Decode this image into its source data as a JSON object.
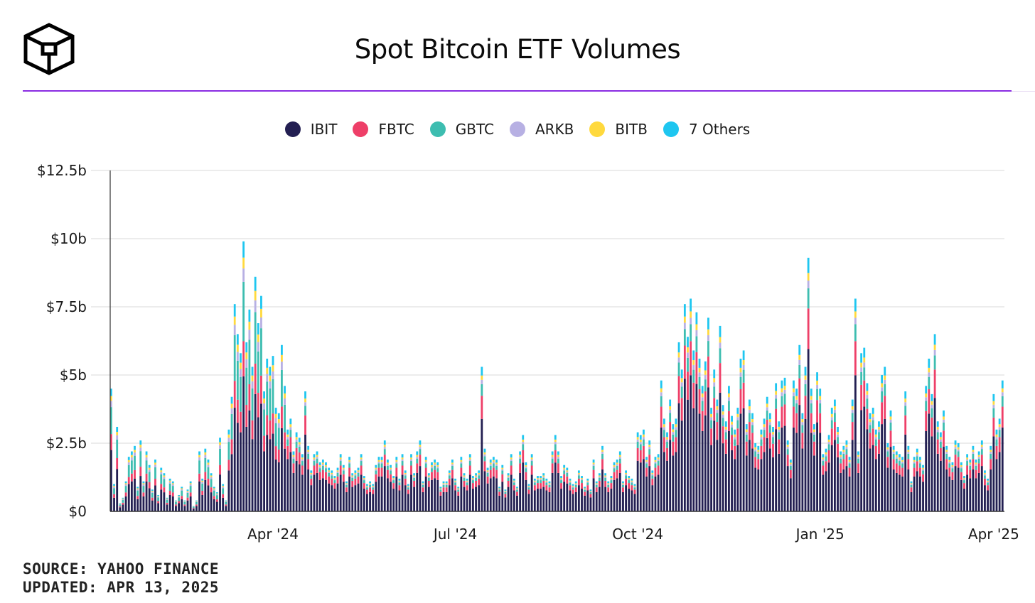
{
  "header": {
    "title": "Spot Bitcoin ETF Volumes"
  },
  "footer": {
    "source": "SOURCE: YAHOO FINANCE",
    "updated": "UPDATED: APR 13, 2025"
  },
  "colors": {
    "divider": "#8a2be2",
    "grid": "#e6e6e6"
  },
  "chart_data": {
    "type": "bar",
    "stacked": true,
    "title": "Spot Bitcoin ETF Volumes",
    "xlabel": "",
    "ylabel": "",
    "ylim": [
      0,
      12.5
    ],
    "unit": "$b",
    "y_ticks": [
      0,
      2.5,
      5,
      7.5,
      10,
      12.5
    ],
    "y_tick_labels": [
      "$0",
      "$2.5b",
      "$5b",
      "$7.5b",
      "$10b",
      "$12.5b"
    ],
    "x_ticks": [
      {
        "label": "Apr '24",
        "index": 55
      },
      {
        "label": "Jul '24",
        "index": 117
      },
      {
        "label": "Oct '24",
        "index": 179
      },
      {
        "label": "Jan '25",
        "index": 241
      },
      {
        "label": "Apr '25",
        "index": 300
      }
    ],
    "grid": true,
    "legend_position": "top-center",
    "series": [
      {
        "name": "IBIT",
        "color": "#231f52"
      },
      {
        "name": "FBTC",
        "color": "#ee3f68"
      },
      {
        "name": "GBTC",
        "color": "#3dbdb0"
      },
      {
        "name": "ARKB",
        "color": "#b7b0e3"
      },
      {
        "name": "BITB",
        "color": "#ffd93d"
      },
      {
        "name": "7 Others",
        "color": "#1ec6f0"
      }
    ],
    "totals": [
      4.5,
      1.0,
      3.1,
      0.3,
      0.5,
      1.1,
      2.0,
      2.2,
      2.4,
      0.9,
      2.6,
      1.1,
      2.2,
      1.7,
      0.8,
      1.9,
      0.6,
      1.6,
      1.4,
      0.5,
      1.2,
      1.1,
      0.4,
      0.6,
      0.9,
      0.4,
      0.8,
      1.1,
      0.2,
      0.4,
      2.2,
      1.2,
      2.3,
      1.9,
      1.4,
      0.9,
      0.7,
      2.7,
      1.0,
      0.4,
      3.0,
      4.2,
      7.6,
      6.5,
      5.8,
      9.9,
      6.2,
      7.4,
      5.3,
      8.6,
      6.9,
      7.9,
      4.4,
      5.6,
      5.3,
      5.7,
      3.8,
      3.6,
      6.1,
      4.6,
      3.0,
      3.4,
      2.2,
      2.9,
      2.7,
      2.1,
      4.4,
      2.4,
      1.5,
      2.1,
      2.2,
      1.8,
      1.9,
      1.8,
      1.6,
      1.5,
      1.3,
      1.6,
      2.1,
      1.7,
      1.1,
      2.0,
      1.4,
      1.5,
      1.6,
      2.1,
      1.3,
      1.0,
      1.1,
      1.0,
      1.7,
      2.0,
      2.0,
      2.6,
      1.9,
      1.7,
      1.3,
      2.0,
      1.2,
      2.1,
      1.5,
      1.0,
      2.1,
      1.4,
      2.2,
      2.6,
      1.1,
      2.0,
      1.4,
      1.8,
      1.9,
      1.8,
      0.9,
      1.1,
      1.1,
      1.5,
      1.9,
      1.2,
      0.9,
      2.0,
      1.4,
      1.2,
      2.1,
      1.3,
      1.4,
      1.5,
      5.3,
      2.3,
      1.6,
      1.9,
      2.0,
      1.9,
      0.9,
      1.7,
      0.8,
      1.4,
      2.1,
      1.2,
      0.9,
      2.2,
      2.8,
      1.8,
      1.0,
      2.1,
      1.2,
      1.3,
      1.3,
      1.4,
      1.2,
      1.1,
      2.2,
      2.8,
      2.2,
      1.3,
      1.7,
      1.6,
      1.2,
      1.0,
      1.1,
      1.5,
      1.3,
      0.9,
      1.2,
      0.8,
      1.9,
      1.1,
      1.4,
      2.4,
      1.4,
      1.1,
      1.3,
      1.8,
      1.9,
      2.2,
      1.1,
      1.5,
      1.3,
      1.2,
      1.0,
      2.9,
      2.8,
      3.0,
      2.0,
      2.6,
      1.5,
      2.0,
      2.1,
      4.8,
      3.4,
      2.9,
      4.1,
      3.2,
      3.4,
      6.2,
      5.2,
      7.6,
      6.4,
      7.8,
      5.9,
      7.3,
      5.6,
      4.6,
      5.5,
      7.1,
      3.8,
      5.2,
      4.1,
      6.8,
      3.9,
      3.3,
      4.6,
      3.5,
      3.0,
      3.8,
      5.6,
      5.9,
      3.2,
      4.1,
      3.6,
      2.5,
      2.4,
      3.0,
      3.4,
      4.2,
      3.6,
      3.1,
      4.7,
      3.3,
      4.8,
      4.9,
      2.6,
      1.9,
      4.8,
      4.5,
      6.1,
      3.6,
      5.3,
      9.3,
      4.5,
      3.2,
      5.1,
      4.5,
      2.1,
      2.3,
      2.8,
      3.8,
      4.1,
      3.1,
      2.2,
      2.4,
      2.6,
      2.0,
      4.1,
      7.8,
      2.2,
      5.8,
      6.0,
      4.7,
      3.6,
      3.8,
      3.0,
      3.3,
      5.0,
      5.3,
      2.5,
      3.7,
      2.4,
      2.2,
      2.1,
      2.0,
      4.4,
      2.4,
      1.1,
      2.0,
      2.3,
      2.0,
      1.7,
      4.6,
      5.6,
      4.3,
      6.5,
      3.3,
      2.9,
      3.7,
      2.4,
      2.0,
      1.8,
      2.6,
      2.5,
      1.8,
      1.3,
      2.1,
      1.9,
      2.4,
      1.9,
      2.2,
      2.6,
      1.5,
      1.2,
      2.4,
      4.3,
      3.0,
      3.4,
      4.8
    ]
  }
}
